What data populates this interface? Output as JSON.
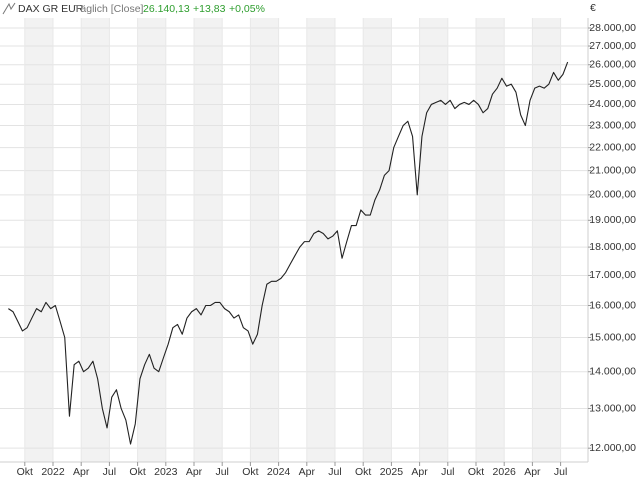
{
  "chart_data": {
    "type": "line",
    "title": "DAX GR EUR",
    "subtitle": "Täglich [Close]",
    "last": "26.140,13",
    "change": "+13,83",
    "change_pct": "+0,05%",
    "unit": "€",
    "color": "#222222",
    "log": true,
    "grid": true,
    "ylim": [
      11670,
      28570
    ],
    "yticks": [
      {
        "value": 12000,
        "label": "12.000,00"
      },
      {
        "value": 13000,
        "label": "13.000,00"
      },
      {
        "value": 14000,
        "label": "14.000,00"
      },
      {
        "value": 15000,
        "label": "15.000,00"
      },
      {
        "value": 16000,
        "label": "16.000,00"
      },
      {
        "value": 17000,
        "label": "17.000,00"
      },
      {
        "value": 18000,
        "label": "18.000,00"
      },
      {
        "value": 19000,
        "label": "19.000,00"
      },
      {
        "value": 20000,
        "label": "20.000,00"
      },
      {
        "value": 21000,
        "label": "21.000,00"
      },
      {
        "value": 22000,
        "label": "22.000,00"
      },
      {
        "value": 23000,
        "label": "23.000,00"
      },
      {
        "value": 24000,
        "label": "24.000,00"
      },
      {
        "value": 25000,
        "label": "25.000,00"
      },
      {
        "value": 26000,
        "label": "26.000,00"
      },
      {
        "value": 27000,
        "label": "27.000,00"
      },
      {
        "value": 28000,
        "label": "28.000,00"
      }
    ],
    "categories": [
      null,
      null,
      null,
      null,
      "Okt",
      null,
      null,
      null,
      null,
      null,
      "2022",
      null,
      null,
      null,
      null,
      null,
      "Apr",
      null,
      null,
      null,
      null,
      null,
      "Jul",
      null,
      null,
      null,
      null,
      null,
      "Okt",
      null,
      null,
      null,
      null,
      null,
      "2023",
      null,
      null,
      null,
      null,
      null,
      "Apr",
      null,
      null,
      null,
      null,
      null,
      "Jul",
      null,
      null,
      null,
      null,
      null,
      "Okt",
      null,
      null,
      null,
      null,
      null,
      "2024",
      null,
      null,
      null,
      null,
      null,
      "Apr",
      null,
      null,
      null,
      null,
      null,
      "Jul",
      null,
      null,
      null,
      null,
      null,
      "Okt",
      null,
      null,
      null,
      null,
      null,
      "2025",
      null,
      null,
      null,
      null,
      null,
      "Apr",
      null,
      null,
      null,
      null,
      null,
      "Jul",
      null,
      null,
      null,
      null,
      null,
      "Okt",
      null,
      null,
      null,
      null,
      null,
      "2026",
      null,
      null,
      null,
      null,
      null,
      "Apr",
      null,
      null,
      null,
      null,
      null,
      "Jul",
      null
    ],
    "values": [
      15900,
      15800,
      15500,
      15200,
      15300,
      15600,
      15900,
      15800,
      16100,
      15900,
      16000,
      15500,
      15000,
      12800,
      14200,
      14300,
      14000,
      14100,
      14300,
      13800,
      13000,
      12500,
      13300,
      13500,
      13000,
      12700,
      12100,
      12600,
      13800,
      14200,
      14500,
      14100,
      14000,
      14400,
      14800,
      15300,
      15400,
      15100,
      15600,
      15800,
      15900,
      15700,
      16000,
      16000,
      16100,
      16100,
      15900,
      15800,
      15600,
      15700,
      15300,
      15200,
      14800,
      15100,
      16000,
      16700,
      16800,
      16800,
      16900,
      17100,
      17400,
      17700,
      18000,
      18200,
      18200,
      18500,
      18600,
      18500,
      18300,
      18400,
      18600,
      17600,
      18200,
      18800,
      18800,
      19400,
      19200,
      19200,
      19800,
      20200,
      20800,
      21000,
      22000,
      22500,
      23000,
      23200,
      22500,
      20000,
      22500,
      23600,
      24000,
      24100,
      24200,
      24000,
      24200,
      23800,
      24000,
      24100,
      24000,
      24200,
      24000,
      23600,
      23800,
      24500,
      24800,
      25300,
      24900,
      25000,
      24600,
      23500,
      23000,
      24200,
      24800,
      24900,
      24800,
      25000,
      25600,
      25200,
      25500,
      26140
    ]
  }
}
